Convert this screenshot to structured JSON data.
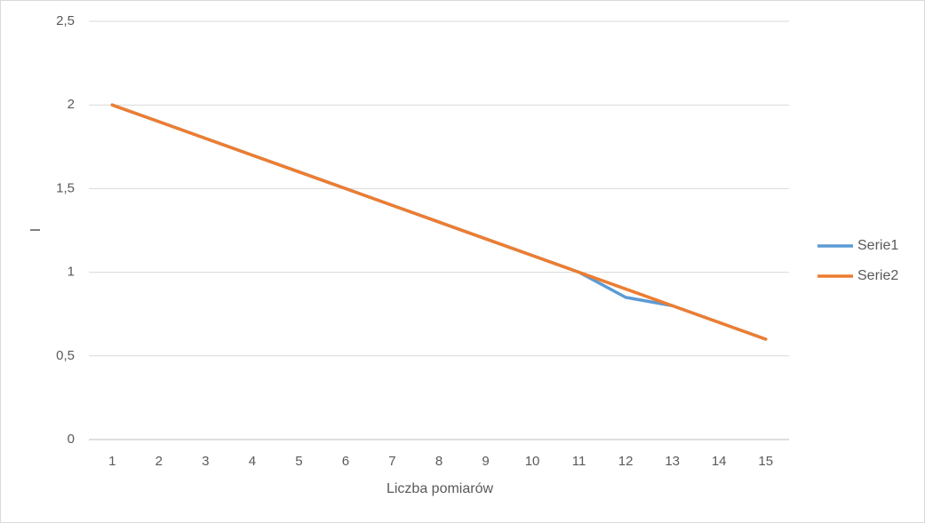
{
  "chart_data": {
    "type": "line",
    "x_label": "Liczba pomiarów",
    "y_label": "I",
    "categories": [
      "1",
      "2",
      "3",
      "4",
      "5",
      "6",
      "7",
      "8",
      "9",
      "10",
      "11",
      "12",
      "13",
      "14",
      "15"
    ],
    "series": [
      {
        "name": "Serie1",
        "color": "#5b9bd5",
        "values": [
          2,
          1.9,
          1.8,
          1.7,
          1.6,
          1.5,
          1.4,
          1.3,
          1.2,
          1.1,
          1.0,
          0.85,
          0.8,
          0.7,
          0.6
        ]
      },
      {
        "name": "Serie2",
        "color": "#ed7d31",
        "values": [
          2,
          1.9,
          1.8,
          1.7,
          1.6,
          1.5,
          1.4,
          1.3,
          1.2,
          1.1,
          1.0,
          0.9,
          0.8,
          0.7,
          0.6
        ]
      }
    ],
    "ylim": [
      0,
      2.5
    ],
    "yticks": [
      0,
      {
        "value": 0.5,
        "label": "0,5"
      },
      1,
      {
        "value": 1.5,
        "label": "1,5"
      },
      2,
      {
        "value": 2.5,
        "label": "2,5"
      }
    ],
    "grid": true,
    "legend": "right"
  }
}
